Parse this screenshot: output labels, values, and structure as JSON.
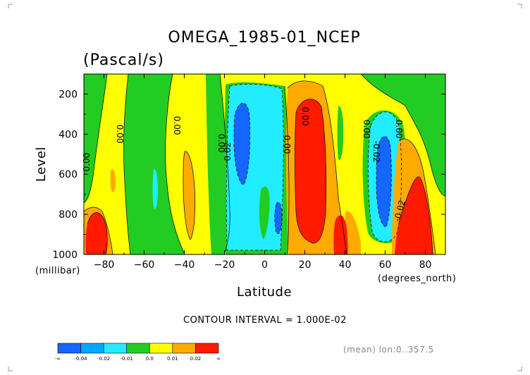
{
  "chart_data": {
    "type": "heatmap",
    "title": "OMEGA_1985-01_NCEP",
    "subtitle": "(Pascal/s)",
    "xlabel": "Latitude",
    "xunit": "(degrees_north)",
    "ylabel": "Level",
    "yunit": "(millibar)",
    "xlim": [
      -90,
      90
    ],
    "ylim": [
      1000,
      100
    ],
    "x_ticks": [
      -80,
      -60,
      -40,
      -20,
      0,
      20,
      40,
      60,
      80
    ],
    "y_ticks": [
      200,
      400,
      600,
      800,
      1000
    ],
    "contour_interval_text": "CONTOUR INTERVAL = 1.000E-02",
    "averaging_text": "(mean) lon:0..357.5",
    "contour_labels": [
      "0.00",
      "0.00",
      "0.00",
      "0.00",
      "0.00",
      "0.00",
      "0.00",
      "0.00",
      "0.02",
      "-0.02",
      "-0.02",
      "0.02"
    ],
    "colorbar": {
      "tick_labels": [
        "-∞",
        "-0.04",
        "-0.02",
        "-0.01",
        "0.0",
        "0.01",
        "0.02",
        "∞"
      ],
      "colors": [
        "#1565ff",
        "#00a8ff",
        "#22ecff",
        "#22cc22",
        "#ffff00",
        "#ffaa00",
        "#ff1a00"
      ]
    }
  }
}
